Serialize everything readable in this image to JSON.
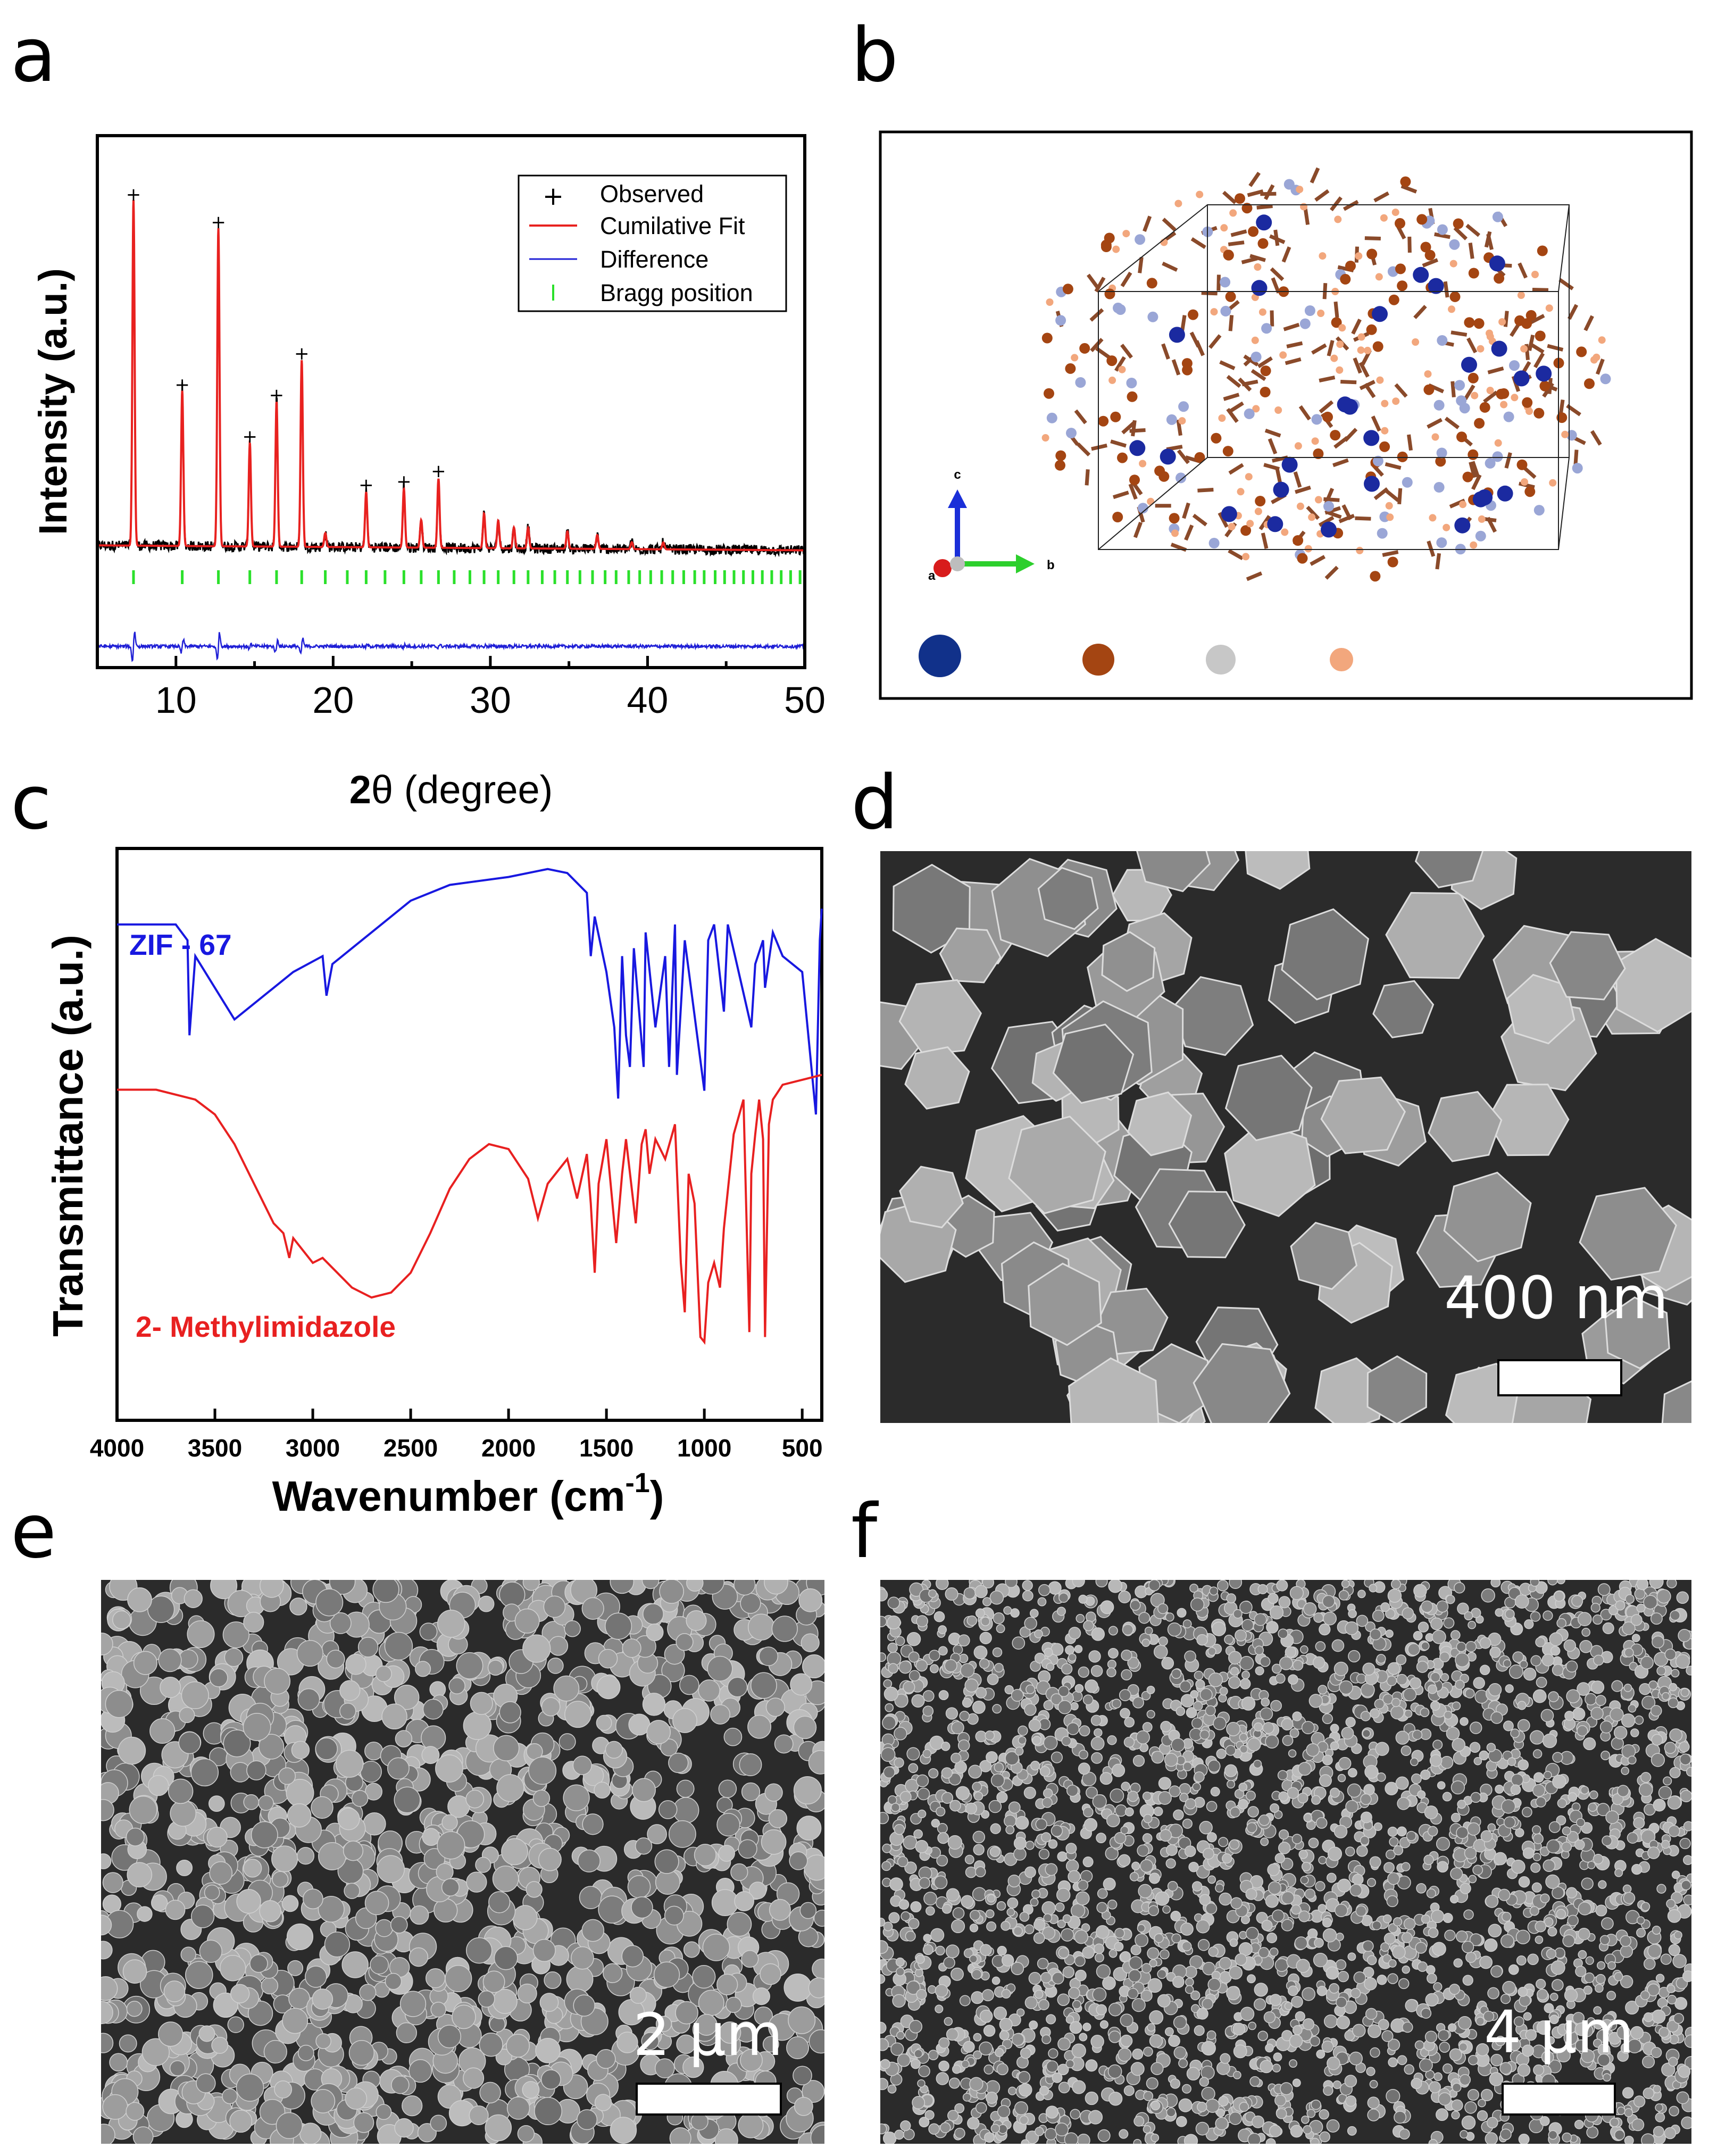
{
  "panels": {
    "a": "a",
    "b": "b",
    "c": "c",
    "d": "d",
    "e": "e",
    "f": "f"
  },
  "chart_data": [
    {
      "id": "a",
      "type": "line",
      "title": "",
      "xlabel_bold": "2",
      "xlabel_rest": "θ (degree)",
      "ylabel": "Intensity (a.u.)",
      "xlim": [
        5,
        50
      ],
      "x_ticks": [
        10,
        20,
        30,
        40,
        50
      ],
      "legend_position": "top-right",
      "legend": [
        "Observed",
        "Cumilative Fit",
        "Difference",
        "Bragg position"
      ],
      "colors": {
        "observed": "#000000",
        "fit": "#e8211f",
        "difference": "#1f1fd6",
        "bragg": "#2be02b"
      },
      "peaks": [
        {
          "x": 7.3,
          "y": 100
        },
        {
          "x": 10.4,
          "y": 45
        },
        {
          "x": 12.7,
          "y": 92
        },
        {
          "x": 14.7,
          "y": 30
        },
        {
          "x": 16.4,
          "y": 42
        },
        {
          "x": 18.0,
          "y": 54
        },
        {
          "x": 19.5,
          "y": 4
        },
        {
          "x": 22.1,
          "y": 16
        },
        {
          "x": 24.5,
          "y": 17
        },
        {
          "x": 25.6,
          "y": 8
        },
        {
          "x": 26.7,
          "y": 20
        },
        {
          "x": 29.6,
          "y": 10
        },
        {
          "x": 30.5,
          "y": 8
        },
        {
          "x": 31.5,
          "y": 6
        },
        {
          "x": 32.4,
          "y": 6
        },
        {
          "x": 34.9,
          "y": 5
        },
        {
          "x": 36.8,
          "y": 4
        },
        {
          "x": 39.0,
          "y": 2
        },
        {
          "x": 41.0,
          "y": 2
        }
      ],
      "bragg_positions": [
        7.3,
        10.4,
        12.7,
        14.7,
        16.4,
        18.0,
        19.5,
        20.9,
        22.1,
        23.3,
        24.5,
        25.6,
        26.7,
        27.7,
        28.7,
        29.6,
        30.5,
        31.5,
        32.4,
        33.3,
        34.1,
        34.9,
        35.7,
        36.5,
        37.3,
        38.0,
        38.8,
        39.5,
        40.2,
        40.9,
        41.6,
        42.3,
        43.0,
        43.6,
        44.3,
        44.9,
        45.5,
        46.1,
        46.7,
        47.3,
        47.9,
        48.5,
        49.1,
        49.7
      ]
    },
    {
      "id": "c",
      "type": "line",
      "title": "",
      "xlabel": "Wavenumber (cm",
      "xlabel_sup": "-1",
      "xlabel_end": ")",
      "ylabel": "Transmittance (a.u.)",
      "xlim": [
        4000,
        400
      ],
      "x_ticks": [
        4000,
        3500,
        3000,
        2500,
        2000,
        1500,
        1000,
        500
      ],
      "series": [
        {
          "name": "ZIF - 67",
          "color": "#1818e0",
          "offset": 80,
          "points": [
            [
              4000,
              84
            ],
            [
              3700,
              84
            ],
            [
              3640,
              82
            ],
            [
              3630,
              70
            ],
            [
              3600,
              80
            ],
            [
              3500,
              76
            ],
            [
              3400,
              72
            ],
            [
              3300,
              74
            ],
            [
              3100,
              78
            ],
            [
              2950,
              80
            ],
            [
              2930,
              75
            ],
            [
              2900,
              79
            ],
            [
              2700,
              83
            ],
            [
              2500,
              87
            ],
            [
              2300,
              89
            ],
            [
              2000,
              90
            ],
            [
              1800,
              91
            ],
            [
              1700,
              90.5
            ],
            [
              1600,
              88
            ],
            [
              1580,
              80
            ],
            [
              1560,
              85
            ],
            [
              1500,
              78
            ],
            [
              1460,
              71
            ],
            [
              1440,
              62
            ],
            [
              1420,
              80
            ],
            [
              1400,
              70
            ],
            [
              1380,
              66
            ],
            [
              1360,
              81
            ],
            [
              1310,
              66
            ],
            [
              1300,
              83
            ],
            [
              1250,
              71
            ],
            [
              1200,
              80
            ],
            [
              1180,
              66
            ],
            [
              1150,
              84
            ],
            [
              1140,
              65
            ],
            [
              1100,
              82
            ],
            [
              1000,
              63
            ],
            [
              980,
              82
            ],
            [
              950,
              84
            ],
            [
              900,
              73
            ],
            [
              880,
              84
            ],
            [
              760,
              71
            ],
            [
              740,
              79
            ],
            [
              700,
              82
            ],
            [
              690,
              76
            ],
            [
              650,
              83
            ],
            [
              600,
              80
            ],
            [
              500,
              78
            ],
            [
              430,
              60
            ],
            [
              410,
              82
            ],
            [
              400,
              86
            ]
          ]
        },
        {
          "name": "2- Methylimidazole",
          "color": "#e82020",
          "offset": 0,
          "points": [
            [
              4000,
              55
            ],
            [
              3800,
              55
            ],
            [
              3600,
              53
            ],
            [
              3500,
              50
            ],
            [
              3400,
              44
            ],
            [
              3300,
              36
            ],
            [
              3200,
              28
            ],
            [
              3150,
              26
            ],
            [
              3120,
              21
            ],
            [
              3100,
              25
            ],
            [
              3000,
              20
            ],
            [
              2950,
              21
            ],
            [
              2800,
              15
            ],
            [
              2700,
              13
            ],
            [
              2600,
              14
            ],
            [
              2500,
              18
            ],
            [
              2400,
              26
            ],
            [
              2300,
              35
            ],
            [
              2200,
              41
            ],
            [
              2100,
              44
            ],
            [
              2000,
              43
            ],
            [
              1900,
              37
            ],
            [
              1850,
              29
            ],
            [
              1800,
              36
            ],
            [
              1700,
              41
            ],
            [
              1650,
              33
            ],
            [
              1600,
              42
            ],
            [
              1580,
              32
            ],
            [
              1560,
              18
            ],
            [
              1540,
              36
            ],
            [
              1500,
              45
            ],
            [
              1450,
              24
            ],
            [
              1420,
              38
            ],
            [
              1400,
              45
            ],
            [
              1350,
              28
            ],
            [
              1320,
              44
            ],
            [
              1300,
              47
            ],
            [
              1280,
              38
            ],
            [
              1250,
              45
            ],
            [
              1200,
              41
            ],
            [
              1150,
              48
            ],
            [
              1120,
              20
            ],
            [
              1100,
              10
            ],
            [
              1080,
              38
            ],
            [
              1050,
              32
            ],
            [
              1020,
              5
            ],
            [
              1000,
              4
            ],
            [
              980,
              16
            ],
            [
              950,
              20
            ],
            [
              920,
              15
            ],
            [
              900,
              27
            ],
            [
              850,
              46
            ],
            [
              800,
              53
            ],
            [
              770,
              6
            ],
            [
              760,
              38
            ],
            [
              740,
              46
            ],
            [
              720,
              53
            ],
            [
              700,
              45
            ],
            [
              690,
              5
            ],
            [
              670,
              48
            ],
            [
              650,
              53
            ],
            [
              600,
              56
            ],
            [
              500,
              57
            ],
            [
              400,
              58
            ]
          ]
        }
      ]
    }
  ],
  "crystal": {
    "axis_c": "c",
    "axis_a": "a",
    "axis_b": "b",
    "legend_colors": [
      "#11318a",
      "#a44512",
      "#c7c7c7",
      "#f2a77d"
    ]
  },
  "sem": [
    {
      "id": "d",
      "scale_label": "400 nm"
    },
    {
      "id": "e",
      "scale_label": "2 µm"
    },
    {
      "id": "f",
      "scale_label": "4 µm"
    }
  ]
}
